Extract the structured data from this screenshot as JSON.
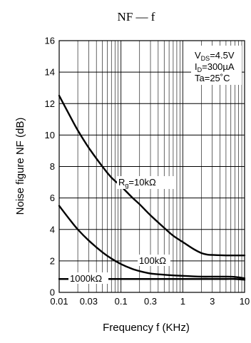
{
  "chart_data": {
    "type": "line",
    "title": "NF — f",
    "xlabel": "Frequency  f  (KHz)",
    "ylabel": "Noise figure  NF  (dB)",
    "x_scale": "log",
    "xlim": [
      0.01,
      10
    ],
    "ylim": [
      0,
      16
    ],
    "x_ticks": [
      "0.01",
      "0.03",
      "0.1",
      "0.3",
      "1",
      "3",
      "10"
    ],
    "x_tick_values": [
      0.01,
      0.03,
      0.1,
      0.3,
      1,
      3,
      10
    ],
    "y_ticks": [
      "0",
      "2",
      "4",
      "6",
      "8",
      "10",
      "12",
      "14",
      "16"
    ],
    "y_tick_values": [
      0,
      2,
      4,
      6,
      8,
      10,
      12,
      14,
      16
    ],
    "grid": true,
    "conditions": {
      "vds": {
        "base": "V",
        "sub": "DS",
        "value": "=4.5V"
      },
      "id": {
        "base": "I",
        "sub": "D",
        "value": "=300µA"
      },
      "ta": "Ta=25˚C"
    },
    "series": [
      {
        "name": "Rg=10kΩ",
        "label": {
          "base": "R",
          "sub": "g",
          "value": "=10kΩ"
        },
        "x": [
          0.01,
          0.015,
          0.02,
          0.03,
          0.05,
          0.07,
          0.1,
          0.15,
          0.2,
          0.3,
          0.5,
          0.7,
          1,
          1.5,
          2,
          2.5,
          3,
          5,
          10
        ],
        "y": [
          12.5,
          11.2,
          10.3,
          9.2,
          8.0,
          7.3,
          6.75,
          6.05,
          5.6,
          4.9,
          4.1,
          3.6,
          3.2,
          2.75,
          2.5,
          2.4,
          2.38,
          2.35,
          2.35
        ]
      },
      {
        "name": "100kΩ",
        "label": {
          "value": "100kΩ"
        },
        "x": [
          0.01,
          0.015,
          0.02,
          0.03,
          0.05,
          0.07,
          0.1,
          0.15,
          0.2,
          0.3,
          0.5,
          1,
          2,
          3,
          5,
          7,
          10
        ],
        "y": [
          5.5,
          4.6,
          4.0,
          3.3,
          2.55,
          2.15,
          1.8,
          1.5,
          1.35,
          1.2,
          1.12,
          1.05,
          1.0,
          1.0,
          1.0,
          0.98,
          0.9
        ]
      },
      {
        "name": "1000kΩ",
        "label": {
          "value": "1000kΩ"
        },
        "x": [
          0.01,
          0.1,
          1,
          3,
          5,
          7,
          10
        ],
        "y": [
          0.85,
          0.85,
          0.85,
          0.85,
          0.85,
          0.85,
          0.8
        ]
      }
    ]
  }
}
